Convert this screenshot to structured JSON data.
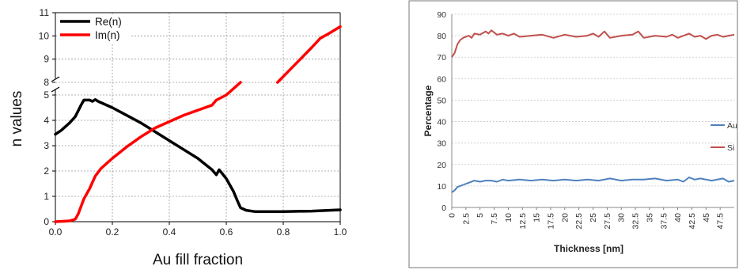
{
  "chart_data": [
    {
      "type": "line",
      "title": "",
      "xlabel": "Au fill fraction",
      "ylabel": "n values",
      "xlim": [
        0,
        1.0
      ],
      "ylim": [
        0,
        11
      ],
      "y_axis_break": [
        5.5,
        8
      ],
      "grid": true,
      "legend_position": "top-left",
      "x_ticks": [
        "0.0",
        "0.2",
        "0.4",
        "0.6",
        "0.8",
        "1.0"
      ],
      "y_ticks": [
        "0",
        "1",
        "2",
        "3",
        "4",
        "5",
        "8",
        "9",
        "10",
        "11"
      ],
      "series": [
        {
          "name": "Re(n)",
          "color": "#000000",
          "points": [
            [
              0,
              3.45
            ],
            [
              0.02,
              3.6
            ],
            [
              0.05,
              3.9
            ],
            [
              0.07,
              4.15
            ],
            [
              0.09,
              4.6
            ],
            [
              0.1,
              4.8
            ],
            [
              0.12,
              4.8
            ],
            [
              0.13,
              4.75
            ],
            [
              0.14,
              4.82
            ],
            [
              0.15,
              4.75
            ],
            [
              0.2,
              4.5
            ],
            [
              0.25,
              4.2
            ],
            [
              0.3,
              3.9
            ],
            [
              0.35,
              3.55
            ],
            [
              0.4,
              3.2
            ],
            [
              0.45,
              2.85
            ],
            [
              0.5,
              2.5
            ],
            [
              0.55,
              2.05
            ],
            [
              0.565,
              1.85
            ],
            [
              0.575,
              2.05
            ],
            [
              0.6,
              1.7
            ],
            [
              0.625,
              1.2
            ],
            [
              0.64,
              0.8
            ],
            [
              0.65,
              0.55
            ],
            [
              0.67,
              0.45
            ],
            [
              0.7,
              0.4
            ],
            [
              0.8,
              0.4
            ],
            [
              0.9,
              0.42
            ],
            [
              1.0,
              0.47
            ]
          ]
        },
        {
          "name": "Im(n)",
          "color": "#ff0000",
          "points": [
            [
              0,
              0
            ],
            [
              0.05,
              0.03
            ],
            [
              0.07,
              0.1
            ],
            [
              0.08,
              0.3
            ],
            [
              0.09,
              0.6
            ],
            [
              0.1,
              0.9
            ],
            [
              0.12,
              1.3
            ],
            [
              0.14,
              1.8
            ],
            [
              0.16,
              2.1
            ],
            [
              0.2,
              2.5
            ],
            [
              0.25,
              2.95
            ],
            [
              0.3,
              3.35
            ],
            [
              0.35,
              3.7
            ],
            [
              0.4,
              3.95
            ],
            [
              0.45,
              4.2
            ],
            [
              0.5,
              4.4
            ],
            [
              0.55,
              4.6
            ],
            [
              0.565,
              4.8
            ],
            [
              0.6,
              5.0
            ],
            [
              0.63,
              5.3
            ],
            [
              0.65,
              5.6
            ],
            null,
            [
              0.78,
              8.0
            ],
            [
              0.82,
              8.5
            ],
            [
              0.86,
              9.0
            ],
            [
              0.9,
              9.5
            ],
            [
              0.93,
              9.9
            ],
            [
              0.96,
              10.1
            ],
            [
              1.0,
              10.4
            ]
          ]
        }
      ]
    },
    {
      "type": "line",
      "title": "",
      "xlabel": "Thickness [nm]",
      "ylabel": "Percentage",
      "xlim": [
        0,
        50
      ],
      "ylim": [
        0,
        90
      ],
      "grid": true,
      "legend_position": "right",
      "x_ticks": [
        "0",
        "2.5",
        "5",
        "7.5",
        "10",
        "12.5",
        "15",
        "17.5",
        "20",
        "22.5",
        "25",
        "27.5",
        "30",
        "32.5",
        "35",
        "37.5",
        "40",
        "42.5",
        "45",
        "47.5"
      ],
      "y_ticks": [
        "0",
        "10",
        "20",
        "30",
        "40",
        "50",
        "60",
        "70",
        "80",
        "90"
      ],
      "series": [
        {
          "name": "Au",
          "color": "#4f81bd",
          "points": [
            [
              0,
              7
            ],
            [
              0.5,
              8
            ],
            [
              1,
              9.5
            ],
            [
              2,
              10.5
            ],
            [
              3,
              11.5
            ],
            [
              4,
              12.5
            ],
            [
              5,
              12
            ],
            [
              6,
              12.5
            ],
            [
              7,
              12.5
            ],
            [
              8,
              12
            ],
            [
              9,
              13
            ],
            [
              10,
              12.5
            ],
            [
              12,
              13
            ],
            [
              14,
              12.5
            ],
            [
              16,
              13
            ],
            [
              18,
              12.5
            ],
            [
              20,
              13
            ],
            [
              22,
              12.5
            ],
            [
              24,
              13
            ],
            [
              26,
              12.5
            ],
            [
              28,
              13.5
            ],
            [
              30,
              12.5
            ],
            [
              32,
              13
            ],
            [
              34,
              13
            ],
            [
              36,
              13.5
            ],
            [
              38,
              12.5
            ],
            [
              40,
              13
            ],
            [
              41,
              12
            ],
            [
              42,
              14
            ],
            [
              43,
              13
            ],
            [
              44,
              13.5
            ],
            [
              46,
              12.5
            ],
            [
              48,
              13.5
            ],
            [
              49,
              12
            ],
            [
              50,
              12.5
            ]
          ]
        },
        {
          "name": "Si",
          "color": "#c0504d",
          "points": [
            [
              0,
              70
            ],
            [
              0.5,
              72
            ],
            [
              1,
              76
            ],
            [
              1.5,
              78
            ],
            [
              2,
              79
            ],
            [
              3,
              80
            ],
            [
              3.5,
              79
            ],
            [
              4,
              81
            ],
            [
              5,
              80.5
            ],
            [
              6,
              82
            ],
            [
              6.5,
              81
            ],
            [
              7,
              82.5
            ],
            [
              8,
              80.5
            ],
            [
              9,
              81
            ],
            [
              10,
              80
            ],
            [
              11,
              81
            ],
            [
              12,
              79.5
            ],
            [
              14,
              80
            ],
            [
              16,
              80.5
            ],
            [
              18,
              79
            ],
            [
              20,
              80.5
            ],
            [
              22,
              79.5
            ],
            [
              24,
              80
            ],
            [
              25,
              81
            ],
            [
              26,
              79.5
            ],
            [
              27,
              82
            ],
            [
              28,
              79
            ],
            [
              30,
              80
            ],
            [
              32,
              80.5
            ],
            [
              33,
              82
            ],
            [
              34,
              79
            ],
            [
              36,
              80
            ],
            [
              38,
              79.5
            ],
            [
              39,
              80.5
            ],
            [
              40,
              79
            ],
            [
              42,
              81
            ],
            [
              43,
              79.5
            ],
            [
              44,
              80
            ],
            [
              45,
              78.5
            ],
            [
              46,
              80
            ],
            [
              47,
              80.5
            ],
            [
              48,
              79.5
            ],
            [
              49,
              80
            ],
            [
              50,
              80.5
            ]
          ]
        }
      ]
    }
  ]
}
